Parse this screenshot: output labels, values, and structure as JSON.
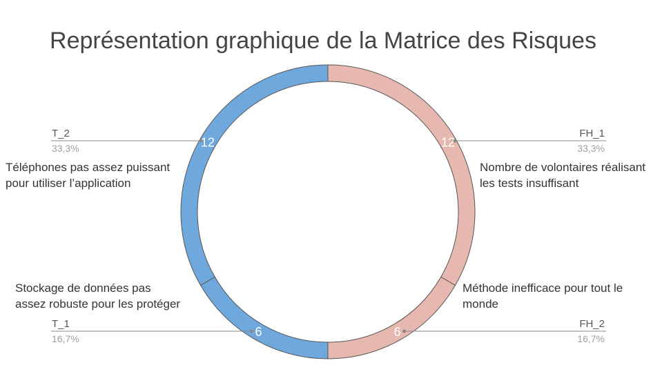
{
  "chart_data": {
    "type": "pie",
    "title": "Représentation graphique de la Matrice des Risques",
    "slices": [
      {
        "code": "FH_1",
        "value": 12,
        "percent": "33,3%",
        "label": "Nombre de volontaires réalisant les tests insuffisant",
        "color": "#e6b8af"
      },
      {
        "code": "FH_2",
        "value": 6,
        "percent": "16,7%",
        "label": "Méthode inefficace pour tout le monde",
        "color": "#e6b8af"
      },
      {
        "code": "T_1",
        "value": 6,
        "percent": "16,7%",
        "label": "Stockage de données pas assez robuste pour les protéger",
        "color": "#6fa8dc"
      },
      {
        "code": "T_2",
        "value": 12,
        "percent": "33,3%",
        "label": "Téléphones pas assez puissant pour utiliser l’application",
        "color": "#6fa8dc"
      }
    ]
  }
}
